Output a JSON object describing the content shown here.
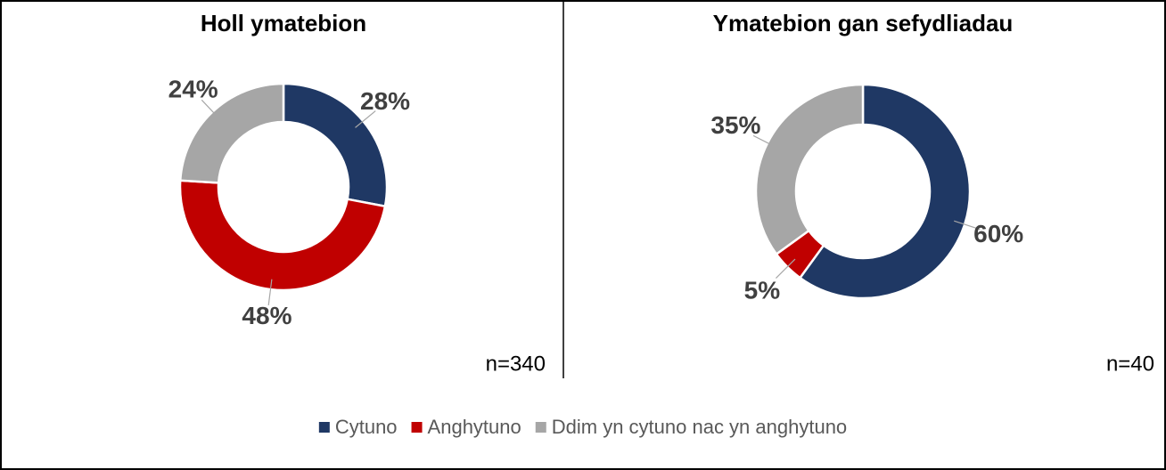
{
  "chart_data": [
    {
      "type": "donut",
      "title": "Holl ymatebion",
      "values": [
        28,
        48,
        24
      ],
      "value_labels": [
        "28%",
        "48%",
        "24%"
      ],
      "colors": [
        "#1f3864",
        "#c00000",
        "#a6a6a6"
      ],
      "note": "n=340"
    },
    {
      "type": "donut",
      "title": "Ymatebion gan sefydliadau",
      "values": [
        60,
        5,
        35
      ],
      "value_labels": [
        "60%",
        "5%",
        "35%"
      ],
      "colors": [
        "#1f3864",
        "#c00000",
        "#a6a6a6"
      ],
      "note": "n=40"
    }
  ],
  "legend": {
    "labels": [
      "Cytuno",
      "Anghytuno",
      "Ddim yn cytuno nac yn anghytuno"
    ],
    "colors": [
      "#1f3864",
      "#c00000",
      "#a6a6a6"
    ]
  }
}
